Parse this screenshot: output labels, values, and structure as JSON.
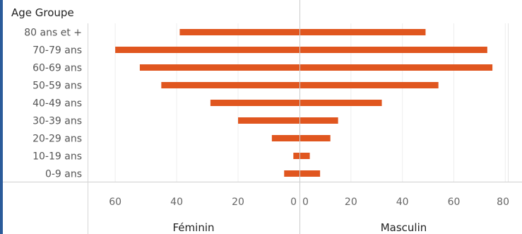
{
  "header": {
    "title": "Age Groupe"
  },
  "chart_data": {
    "type": "bar",
    "orientation": "horizontal",
    "categories": [
      "80 ans et +",
      "70-79 ans",
      "60-69 ans",
      "50-59 ans",
      "40-49 ans",
      "30-39 ans",
      "20-29 ans",
      "10-19 ans",
      "0-9 ans"
    ],
    "series": [
      {
        "name": "Féminin",
        "values": [
          39,
          60,
          52,
          45,
          29,
          20,
          9,
          2,
          5
        ]
      },
      {
        "name": "Masculin",
        "values": [
          49,
          73,
          75,
          54,
          32,
          15,
          12,
          4,
          8
        ]
      }
    ],
    "left_ticks": [
      "60",
      "40",
      "20",
      "0"
    ],
    "right_ticks": [
      "0",
      "20",
      "40",
      "60",
      "80"
    ],
    "left_xlim": [
      0,
      69
    ],
    "right_xlim": [
      0,
      81
    ],
    "bar_color": "#e0561f",
    "grid": true
  }
}
